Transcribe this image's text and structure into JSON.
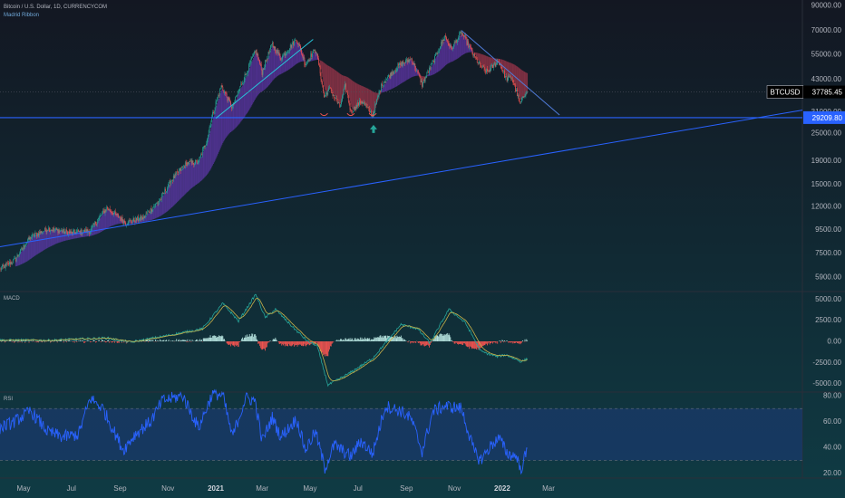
{
  "header": {
    "symbol_line": "Bitcoin / U.S. Dollar, 1D, CURRENCYCOM",
    "indicator": "Madrid Ribbon"
  },
  "colors": {
    "background": "#131722",
    "bg_bottom": "#113a45",
    "grid": "#1e2a36",
    "up_candle": "#26a69a",
    "down_candle": "#ef5350",
    "trendline": "#2962ff",
    "support_line": "#2962ff",
    "ribbon_up": "#7b3fd9",
    "ribbon_down": "#d2405a",
    "macd_line": "#26a69a",
    "signal_line": "#c9b34a",
    "hist_pos": "#b2dfdb",
    "hist_neg": "#ef5350",
    "rsi_line": "#2962ff",
    "rsi_band": "#1d3b7a",
    "axis_text": "#b2b5be",
    "price_label_bg": "#000000",
    "price_label_text": "#ffffff",
    "level_label_bg": "#2962ff",
    "arrow": "#26a69a"
  },
  "chart_data": [
    {
      "type": "candlestick",
      "name": "price",
      "y_scale": "log",
      "ylim": [
        5200,
        95000
      ],
      "x_tick_labels": [
        "May",
        "Jul",
        "Sep",
        "Nov",
        "2021",
        "Mar",
        "May",
        "Jul",
        "Sep",
        "Nov",
        "2022",
        "Mar"
      ],
      "y_tick_labels": [
        "90000.00",
        "70000.00",
        "55000.00",
        "43000.00",
        "31000.00",
        "25000.00",
        "19000.00",
        "15000.00",
        "12000.00",
        "9500.00",
        "7500.00",
        "5900.00"
      ],
      "y_ticks": [
        90000,
        70000,
        55000,
        43000,
        31000,
        25000,
        19000,
        15000,
        12000,
        9500,
        7500,
        5900
      ],
      "keypoints": [
        [
          "2020-04-01",
          6400
        ],
        [
          "2020-04-20",
          7000
        ],
        [
          "2020-05-10",
          8800
        ],
        [
          "2020-06-01",
          9600
        ],
        [
          "2020-07-01",
          9200
        ],
        [
          "2020-07-25",
          9400
        ],
        [
          "2020-08-15",
          11800
        ],
        [
          "2020-09-08",
          10200
        ],
        [
          "2020-10-01",
          10700
        ],
        [
          "2020-10-22",
          12800
        ],
        [
          "2020-11-05",
          15500
        ],
        [
          "2020-11-25",
          18500
        ],
        [
          "2020-12-10",
          18700
        ],
        [
          "2020-12-20",
          23000
        ],
        [
          "2021-01-08",
          40000
        ],
        [
          "2021-01-22",
          32000
        ],
        [
          "2021-02-08",
          45000
        ],
        [
          "2021-02-21",
          57000
        ],
        [
          "2021-03-01",
          46000
        ],
        [
          "2021-03-14",
          61000
        ],
        [
          "2021-03-25",
          53000
        ],
        [
          "2021-04-14",
          64000
        ],
        [
          "2021-04-25",
          50000
        ],
        [
          "2021-05-08",
          58000
        ],
        [
          "2021-05-19",
          36000
        ],
        [
          "2021-05-26",
          39000
        ],
        [
          "2021-06-08",
          32500
        ],
        [
          "2021-06-15",
          40000
        ],
        [
          "2021-06-22",
          31000
        ],
        [
          "2021-07-06",
          34500
        ],
        [
          "2021-07-20",
          29800
        ],
        [
          "2021-08-01",
          41000
        ],
        [
          "2021-08-23",
          49500
        ],
        [
          "2021-09-07",
          52700
        ],
        [
          "2021-09-21",
          40700
        ],
        [
          "2021-10-05",
          51000
        ],
        [
          "2021-10-20",
          66000
        ],
        [
          "2021-10-28",
          58000
        ],
        [
          "2021-11-10",
          68500
        ],
        [
          "2021-11-26",
          54000
        ],
        [
          "2021-12-04",
          49000
        ],
        [
          "2021-12-13",
          46000
        ],
        [
          "2021-12-27",
          51500
        ],
        [
          "2022-01-06",
          43000
        ],
        [
          "2022-01-13",
          43800
        ],
        [
          "2022-01-22",
          34800
        ],
        [
          "2022-01-24",
          33500
        ],
        [
          "2022-02-01",
          38500
        ],
        [
          "2022-02-02",
          37785
        ]
      ],
      "last_price_label": "BTCUSD",
      "last_price": "37785.45",
      "support_level": "29209.80",
      "arrow_date": "2021-07-21"
    },
    {
      "type": "line",
      "name": "MACD",
      "ylim": [
        -5800,
        5800
      ],
      "y_tick_labels": [
        "5000.00",
        "2500.00",
        "0.00",
        "-2500.00",
        "-5000.00"
      ],
      "y_ticks": [
        5000,
        2500,
        0,
        -2500,
        -5000
      ],
      "series_keypoints": [
        [
          "2020-04-01",
          150
        ],
        [
          "2020-06-01",
          120
        ],
        [
          "2020-08-15",
          400
        ],
        [
          "2020-09-15",
          -100
        ],
        [
          "2020-11-01",
          700
        ],
        [
          "2020-12-15",
          1500
        ],
        [
          "2021-01-10",
          4500
        ],
        [
          "2021-01-30",
          2400
        ],
        [
          "2021-02-21",
          5600
        ],
        [
          "2021-03-05",
          2800
        ],
        [
          "2021-03-18",
          3800
        ],
        [
          "2021-04-10",
          1600
        ],
        [
          "2021-04-28",
          0
        ],
        [
          "2021-05-10",
          -500
        ],
        [
          "2021-05-24",
          -5200
        ],
        [
          "2021-06-20",
          -3800
        ],
        [
          "2021-07-20",
          -2000
        ],
        [
          "2021-08-25",
          2000
        ],
        [
          "2021-09-15",
          1500
        ],
        [
          "2021-10-01",
          -200
        ],
        [
          "2021-10-25",
          3800
        ],
        [
          "2021-11-15",
          2200
        ],
        [
          "2021-12-05",
          -1200
        ],
        [
          "2021-12-25",
          -1800
        ],
        [
          "2022-01-06",
          -1600
        ],
        [
          "2022-01-25",
          -2400
        ],
        [
          "2022-02-02",
          -2100
        ]
      ]
    },
    {
      "type": "line",
      "name": "RSI",
      "ylim": [
        17,
        82
      ],
      "y_tick_labels": [
        "80.00",
        "60.00",
        "40.00",
        "20.00"
      ],
      "y_ticks": [
        80,
        60,
        40,
        20
      ],
      "band": [
        30,
        70
      ],
      "series_keypoints": [
        [
          "2020-04-01",
          55
        ],
        [
          "2020-04-20",
          60
        ],
        [
          "2020-05-10",
          68
        ],
        [
          "2020-06-01",
          52
        ],
        [
          "2020-06-20",
          48
        ],
        [
          "2020-07-10",
          50
        ],
        [
          "2020-07-25",
          78
        ],
        [
          "2020-08-10",
          70
        ],
        [
          "2020-09-05",
          38
        ],
        [
          "2020-09-20",
          50
        ],
        [
          "2020-10-10",
          60
        ],
        [
          "2020-10-25",
          76
        ],
        [
          "2020-11-20",
          80
        ],
        [
          "2020-12-10",
          55
        ],
        [
          "2020-12-28",
          82
        ],
        [
          "2021-01-10",
          80
        ],
        [
          "2021-01-22",
          48
        ],
        [
          "2021-02-08",
          78
        ],
        [
          "2021-02-20",
          76
        ],
        [
          "2021-03-01",
          45
        ],
        [
          "2021-03-14",
          63
        ],
        [
          "2021-03-25",
          48
        ],
        [
          "2021-04-14",
          62
        ],
        [
          "2021-04-25",
          38
        ],
        [
          "2021-05-08",
          52
        ],
        [
          "2021-05-20",
          24
        ],
        [
          "2021-06-01",
          42
        ],
        [
          "2021-06-22",
          33
        ],
        [
          "2021-07-05",
          45
        ],
        [
          "2021-07-20",
          35
        ],
        [
          "2021-08-05",
          72
        ],
        [
          "2021-08-25",
          68
        ],
        [
          "2021-09-07",
          62
        ],
        [
          "2021-09-21",
          37
        ],
        [
          "2021-10-05",
          68
        ],
        [
          "2021-10-20",
          72
        ],
        [
          "2021-11-10",
          70
        ],
        [
          "2021-11-26",
          37
        ],
        [
          "2021-12-04",
          30
        ],
        [
          "2021-12-20",
          43
        ],
        [
          "2021-12-28",
          47
        ],
        [
          "2022-01-08",
          35
        ],
        [
          "2022-01-20",
          33
        ],
        [
          "2022-01-24",
          22
        ],
        [
          "2022-02-02",
          38
        ]
      ]
    }
  ],
  "panels": {
    "macd_label": "MACD",
    "rsi_label": "RSI"
  }
}
